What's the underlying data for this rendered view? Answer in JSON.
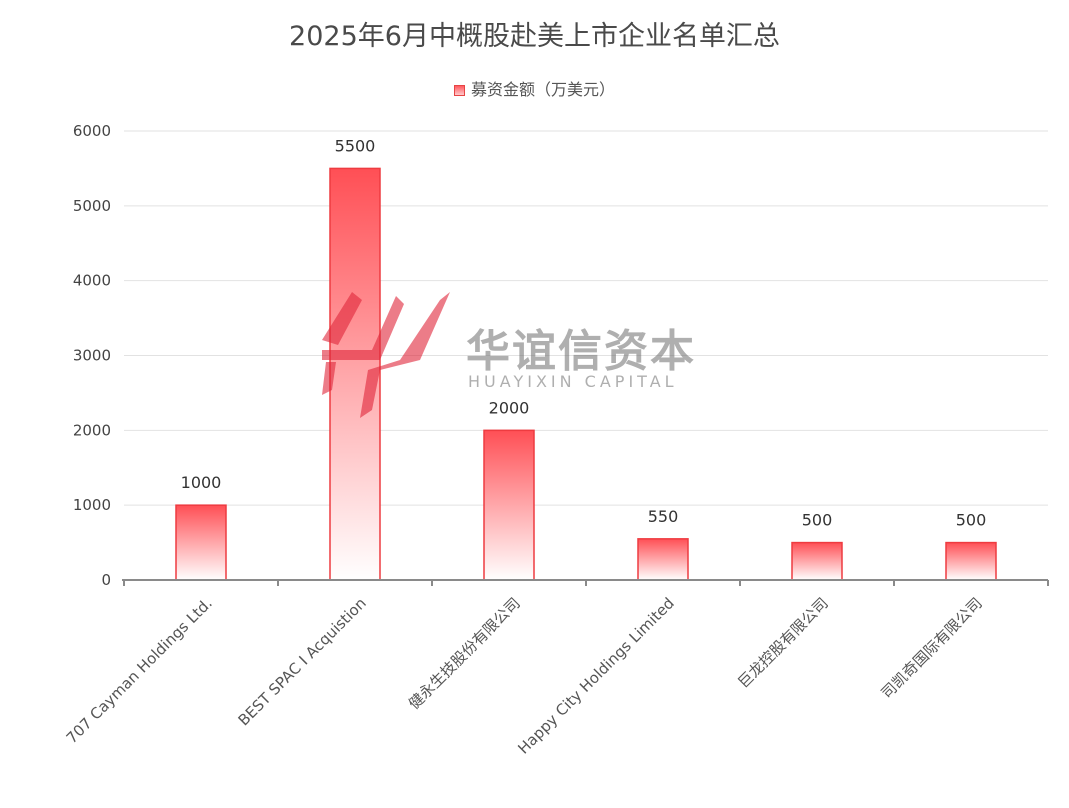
{
  "chart_data": {
    "type": "bar",
    "title": "2025年6月中概股赴美上市企业名单汇总",
    "categories": [
      "707 Cayman Holdings Ltd.",
      "BEST SPAC I Acquistion",
      "健永生技股份有限公司",
      "Happy City Holdings Limited",
      "巨龙控股有限公司",
      "司凯奇国际有限公司"
    ],
    "series": [
      {
        "name": "募资金额（万美元）",
        "values": [
          1000,
          5500,
          2000,
          550,
          500,
          500
        ]
      }
    ],
    "ylim": [
      0,
      6000
    ],
    "yticks": [
      0,
      1000,
      2000,
      3000,
      4000,
      5000,
      6000
    ],
    "grid": true,
    "legend_position": "top-center",
    "colors": {
      "bar_top": "#ff4f55",
      "bar_bottom": "#ffffff",
      "bar_stroke": "#ee3b40"
    }
  },
  "watermark": {
    "logo_icon": "huayixin-logo-icon",
    "name": "华谊信资本",
    "subtitle": "HUAYIXIN CAPITAL"
  }
}
